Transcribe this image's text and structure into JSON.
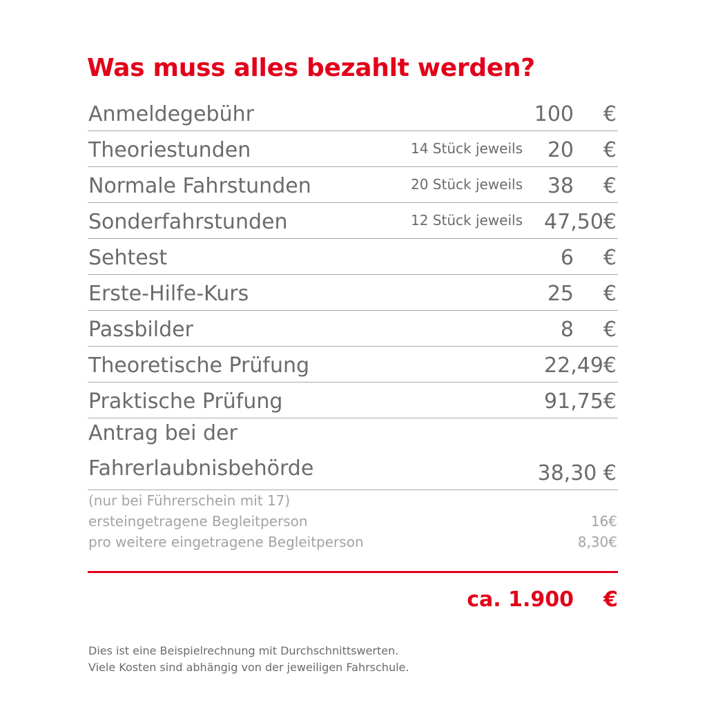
{
  "title": "Was muss alles bezahlt werden?",
  "rows": [
    {
      "label": "Anmeldegebühr",
      "note": "",
      "amount": "100",
      "currency": "€"
    },
    {
      "label": "Theoriestunden",
      "note": "14 Stück jeweils",
      "amount": "20",
      "currency": "€"
    },
    {
      "label": "Normale Fahrstunden",
      "note": "20 Stück jeweils",
      "amount": "38",
      "currency": "€"
    },
    {
      "label": "Sonderfahrstunden",
      "note": "12 Stück jeweils",
      "amount": "47,50€",
      "currency": ""
    },
    {
      "label": "Sehtest",
      "note": "",
      "amount": "6",
      "currency": "€"
    },
    {
      "label": "Erste-Hilfe-Kurs",
      "note": "",
      "amount": "25",
      "currency": "€"
    },
    {
      "label": "Passbilder",
      "note": "",
      "amount": "8",
      "currency": "€"
    },
    {
      "label": "Theoretische Prüfung",
      "note": "",
      "amount": "22,49€",
      "currency": ""
    },
    {
      "label": "Praktische Prüfung",
      "note": "",
      "amount": "91,75€",
      "currency": ""
    },
    {
      "label_line1": "Antrag bei der",
      "label_line2": "Fahrerlaubnisbehörde",
      "amount": "38,30 €"
    }
  ],
  "extra": {
    "condition": "(nur bei Führerschein mit 17)",
    "items": [
      {
        "label": "ersteingetragene Begleitperson",
        "value": "16€"
      },
      {
        "label": "pro weitere eingetragene Begleitperson",
        "value": "8,30€"
      }
    ]
  },
  "total": {
    "amount": "ca. 1.900",
    "currency": "€"
  },
  "footnote": {
    "line1": "Dies ist eine Beispielrechnung mit Durchschnittswerten.",
    "line2": "Viele Kosten sind abhängig von der jeweiligen Fahrschule."
  },
  "colors": {
    "accent": "#e2001a",
    "text": "#6b6b6b",
    "muted": "#a3a3a3",
    "rule": "#a8a8a8"
  }
}
